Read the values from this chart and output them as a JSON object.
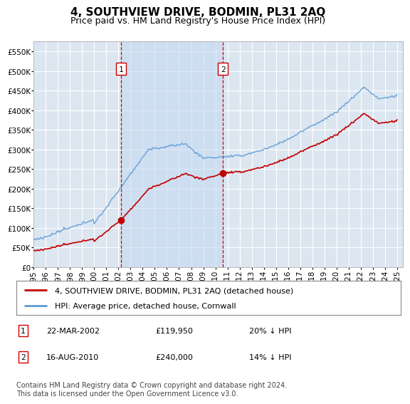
{
  "title": "4, SOUTHVIEW DRIVE, BODMIN, PL31 2AQ",
  "subtitle": "Price paid vs. HM Land Registry's House Price Index (HPI)",
  "ylabel_ticks": [
    "£0",
    "£50K",
    "£100K",
    "£150K",
    "£200K",
    "£250K",
    "£300K",
    "£350K",
    "£400K",
    "£450K",
    "£500K",
    "£550K"
  ],
  "ytick_values": [
    0,
    50000,
    100000,
    150000,
    200000,
    250000,
    300000,
    350000,
    400000,
    450000,
    500000,
    550000
  ],
  "ylim": [
    0,
    575000
  ],
  "xlim_start": 1995.0,
  "xlim_end": 2025.5,
  "hpi_color": "#5b9bd5",
  "price_color": "#c00000",
  "dashed_line_color": "#cc0000",
  "background_color": "#dce6f1",
  "shade_color": "#c5d9f1",
  "plot_bg_color": "#dce6f1",
  "grid_color": "#ffffff",
  "legend_label_price": "4, SOUTHVIEW DRIVE, BODMIN, PL31 2AQ (detached house)",
  "legend_label_hpi": "HPI: Average price, detached house, Cornwall",
  "transaction1_date": "22-MAR-2002",
  "transaction1_price": 119950,
  "transaction1_year": 2002.22,
  "transaction1_label": "1",
  "transaction1_pct": "20% ↓ HPI",
  "transaction2_date": "16-AUG-2010",
  "transaction2_price": 240000,
  "transaction2_year": 2010.62,
  "transaction2_label": "2",
  "transaction2_pct": "14% ↓ HPI",
  "footnote": "Contains HM Land Registry data © Crown copyright and database right 2024.\nThis data is licensed under the Open Government Licence v3.0.",
  "title_fontsize": 11,
  "subtitle_fontsize": 9,
  "tick_fontsize": 7.5,
  "legend_fontsize": 8,
  "footnote_fontsize": 7
}
